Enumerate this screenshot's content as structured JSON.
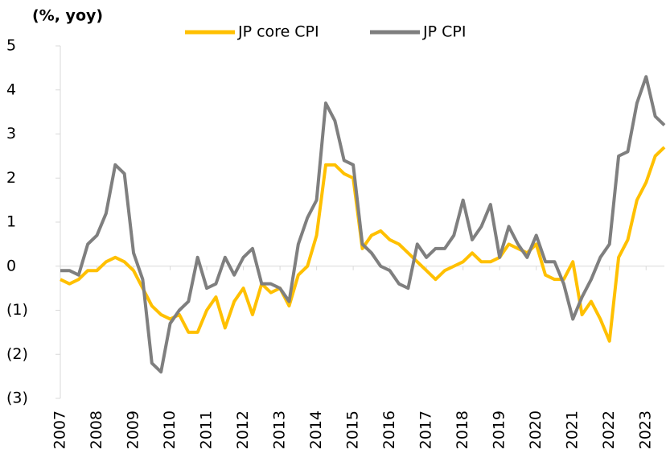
{
  "chart_data": {
    "type": "line",
    "y_label": "(%, yoy)",
    "x": [
      2007,
      2007.25,
      2007.5,
      2007.75,
      2008,
      2008.25,
      2008.5,
      2008.75,
      2009,
      2009.25,
      2009.5,
      2009.75,
      2010,
      2010.25,
      2010.5,
      2010.75,
      2011,
      2011.25,
      2011.5,
      2011.75,
      2012,
      2012.25,
      2012.5,
      2012.75,
      2013,
      2013.25,
      2013.5,
      2013.75,
      2014,
      2014.25,
      2014.5,
      2014.75,
      2015,
      2015.25,
      2015.5,
      2015.75,
      2016,
      2016.25,
      2016.5,
      2016.75,
      2017,
      2017.25,
      2017.5,
      2017.75,
      2018,
      2018.25,
      2018.5,
      2018.75,
      2019,
      2019.25,
      2019.5,
      2019.75,
      2020,
      2020.25,
      2020.5,
      2020.75,
      2021,
      2021.25,
      2021.5,
      2021.75,
      2022,
      2022.25,
      2022.5,
      2022.75,
      2023,
      2023.25,
      2023.5
    ],
    "series": [
      {
        "name": "JP core CPI",
        "color": "#ffc000",
        "values": [
          -0.3,
          -0.4,
          -0.3,
          -0.1,
          -0.1,
          0.1,
          0.2,
          0.1,
          -0.1,
          -0.5,
          -0.9,
          -1.1,
          -1.2,
          -1.1,
          -1.5,
          -1.5,
          -1.0,
          -0.7,
          -1.4,
          -0.8,
          -0.5,
          -1.1,
          -0.4,
          -0.6,
          -0.5,
          -0.9,
          -0.2,
          0.0,
          0.7,
          2.3,
          2.3,
          2.1,
          2.0,
          0.4,
          0.7,
          0.8,
          0.6,
          0.5,
          0.3,
          0.1,
          -0.1,
          -0.3,
          -0.1,
          0.0,
          0.1,
          0.3,
          0.1,
          0.1,
          0.2,
          0.5,
          0.4,
          0.3,
          0.5,
          -0.2,
          -0.3,
          -0.3,
          0.1,
          -1.1,
          -0.8,
          -1.2,
          -1.7,
          0.2,
          0.6,
          1.5,
          1.9,
          2.5,
          2.7
        ]
      },
      {
        "name": "JP CPI",
        "color": "#7f7f7f",
        "values": [
          -0.1,
          -0.1,
          -0.2,
          0.5,
          0.7,
          1.2,
          2.3,
          2.1,
          0.3,
          -0.3,
          -2.2,
          -2.4,
          -1.3,
          -1.0,
          -0.8,
          0.2,
          -0.5,
          -0.4,
          0.2,
          -0.2,
          0.2,
          0.4,
          -0.4,
          -0.4,
          -0.5,
          -0.8,
          0.5,
          1.1,
          1.5,
          3.7,
          3.3,
          2.4,
          2.3,
          0.5,
          0.3,
          0.0,
          -0.1,
          -0.4,
          -0.5,
          0.5,
          0.2,
          0.4,
          0.4,
          0.7,
          1.5,
          0.6,
          0.9,
          1.4,
          0.2,
          0.9,
          0.5,
          0.2,
          0.7,
          0.1,
          0.1,
          -0.4,
          -1.2,
          -0.7,
          -0.3,
          0.2,
          0.5,
          2.5,
          2.6,
          3.7,
          4.3,
          3.4,
          3.2
        ]
      }
    ],
    "xlim": [
      2007,
      2023.5
    ],
    "xticks": [
      2007,
      2008,
      2009,
      2010,
      2011,
      2012,
      2013,
      2014,
      2015,
      2016,
      2017,
      2018,
      2019,
      2020,
      2021,
      2022,
      2023
    ],
    "ylim": [
      -3,
      5
    ],
    "yticks": [
      {
        "value": -3,
        "label": "(3)"
      },
      {
        "value": -2,
        "label": "(2)"
      },
      {
        "value": -1,
        "label": "(1)"
      },
      0,
      1,
      2,
      3,
      4,
      5
    ],
    "legend": "top"
  }
}
